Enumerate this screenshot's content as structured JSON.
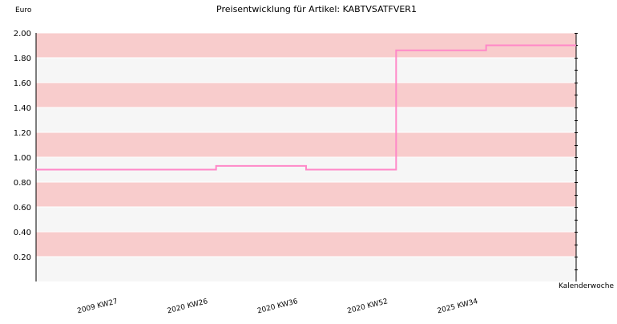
{
  "chart_data": {
    "type": "line",
    "step": true,
    "title": "Preisentwicklung für Artikel: KABTVSATFVER1",
    "ylabel": "Euro",
    "xlabel": "Kalenderwoche",
    "ylim": [
      0,
      2
    ],
    "yticks": [
      "0.20",
      "0.40",
      "0.60",
      "0.80",
      "1.00",
      "1.20",
      "1.40",
      "1.60",
      "1.80",
      "2.00"
    ],
    "categories": [
      "2009 KW27",
      "2020 KW26",
      "2020 KW36",
      "2020 KW52",
      "2025 KW34"
    ],
    "series": [
      {
        "values": [
          0.9,
          0.93,
          0.9,
          1.86,
          1.9
        ]
      }
    ],
    "grid": true,
    "colors": {
      "line": "#ff88c8",
      "band_dark": "#f8cccc",
      "band_light": "#f6f6f6",
      "axis": "#000000"
    }
  }
}
